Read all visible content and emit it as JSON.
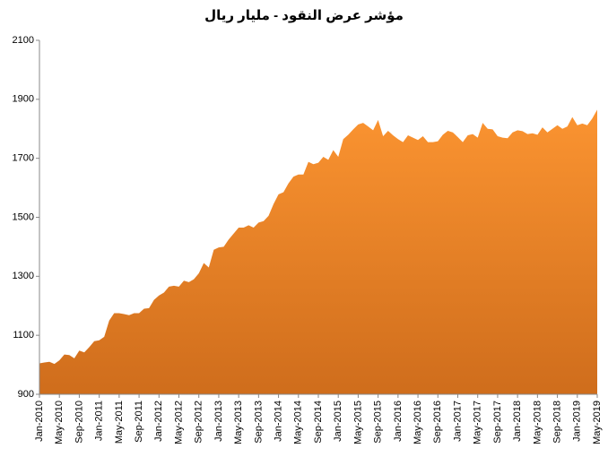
{
  "chart_data": {
    "type": "area",
    "title": "مؤشر عرض النقود - مليار ريال",
    "categories": [
      "Jan-2010",
      null,
      null,
      null,
      "May-2010",
      null,
      null,
      null,
      "Sep-2010",
      null,
      null,
      null,
      "Jan-2011",
      null,
      null,
      null,
      "May-2011",
      null,
      null,
      null,
      "Sep-2011",
      null,
      null,
      null,
      "Jan-2012",
      null,
      null,
      null,
      "May-2012",
      null,
      null,
      null,
      "Sep-2012",
      null,
      null,
      null,
      "Jan-2013",
      null,
      null,
      null,
      "May-2013",
      null,
      null,
      null,
      "Sep-2013",
      null,
      null,
      null,
      "Jan-2014",
      null,
      null,
      null,
      "May-2014",
      null,
      null,
      null,
      "Sep-2014",
      null,
      null,
      null,
      "Jan-2015",
      null,
      null,
      null,
      "May-2015",
      null,
      null,
      null,
      "Sep-2015",
      null,
      null,
      null,
      "Jan-2016",
      null,
      null,
      null,
      "May-2016",
      null,
      null,
      null,
      "Sep-2016",
      null,
      null,
      null,
      "Jan-2017",
      null,
      null,
      null,
      "May-2017",
      null,
      null,
      null,
      "Sep-2017",
      null,
      null,
      null,
      "Jan-2018",
      null,
      null,
      null,
      "May-2018",
      null,
      null,
      null,
      "Sep-2018",
      null,
      null,
      null,
      "Jan-2019",
      null,
      null,
      null,
      "May-2019"
    ],
    "values": [
      1005,
      1008,
      1010,
      1003,
      1015,
      1035,
      1033,
      1022,
      1048,
      1042,
      1060,
      1080,
      1083,
      1095,
      1150,
      1175,
      1175,
      1172,
      1168,
      1175,
      1175,
      1190,
      1192,
      1220,
      1235,
      1245,
      1265,
      1268,
      1265,
      1285,
      1280,
      1290,
      1310,
      1345,
      1330,
      1390,
      1398,
      1400,
      1425,
      1445,
      1465,
      1465,
      1473,
      1465,
      1482,
      1487,
      1505,
      1545,
      1578,
      1585,
      1615,
      1638,
      1645,
      1645,
      1688,
      1680,
      1685,
      1705,
      1695,
      1728,
      1705,
      1765,
      1780,
      1798,
      1815,
      1820,
      1808,
      1795,
      1830,
      1775,
      1793,
      1778,
      1765,
      1755,
      1778,
      1770,
      1762,
      1775,
      1755,
      1755,
      1758,
      1780,
      1793,
      1788,
      1772,
      1755,
      1778,
      1782,
      1770,
      1820,
      1800,
      1798,
      1775,
      1770,
      1768,
      1788,
      1795,
      1792,
      1782,
      1785,
      1780,
      1805,
      1788,
      1800,
      1812,
      1800,
      1808,
      1840,
      1812,
      1818,
      1812,
      1835,
      1865
    ],
    "color": "#fb9431",
    "gradient_bottom": "#cf6d1c",
    "ylim": [
      900,
      2100
    ],
    "yticks": [
      900,
      1100,
      1300,
      1500,
      1700,
      1900,
      2100
    ],
    "grid": false
  }
}
